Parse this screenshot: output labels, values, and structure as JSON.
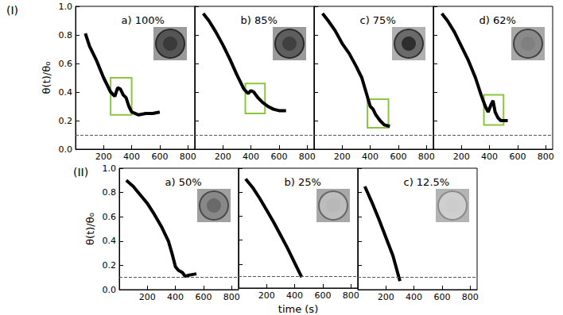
{
  "chart_data": [
    {
      "type": "line",
      "title": "a) 100%",
      "annotations": [
        "(I)"
      ],
      "ylabel": "θ(t)/θ₀",
      "x": [
        70,
        100,
        150,
        200,
        250,
        280,
        300,
        320,
        340,
        360,
        380,
        400,
        450,
        500,
        550,
        600
      ],
      "values": [
        0.81,
        0.72,
        0.62,
        0.5,
        0.4,
        0.37,
        0.43,
        0.42,
        0.38,
        0.36,
        0.3,
        0.26,
        0.24,
        0.25,
        0.25,
        0.26
      ],
      "color": "#000000",
      "line_style": "solid",
      "xlim": [
        0,
        850
      ],
      "xticks": [
        200,
        400,
        600,
        800
      ],
      "ylim": [
        0,
        1.0
      ],
      "yticks": [
        {
          "value": 0,
          "label": "0.0"
        },
        {
          "value": 0.2,
          "label": "0.2"
        },
        {
          "value": 0.4,
          "label": "0.4"
        },
        {
          "value": 0.6,
          "label": "0.6"
        },
        {
          "value": 0.8,
          "label": "0.8"
        },
        {
          "value": 1.0,
          "label": "1.0"
        }
      ],
      "reference_line": 0.1,
      "highlight_box": {
        "xlim": [
          250,
          400
        ],
        "ylim": [
          0.24,
          0.5
        ]
      },
      "grid": false
    },
    {
      "type": "line",
      "title": "b) 85%",
      "x": [
        60,
        100,
        150,
        200,
        250,
        300,
        350,
        380,
        400,
        420,
        450,
        480,
        520,
        560,
        600,
        650
      ],
      "values": [
        0.95,
        0.9,
        0.82,
        0.73,
        0.63,
        0.52,
        0.42,
        0.39,
        0.41,
        0.4,
        0.36,
        0.33,
        0.3,
        0.28,
        0.27,
        0.27
      ],
      "color": "#000000",
      "line_style": "solid",
      "xlim": [
        0,
        850
      ],
      "xticks": [
        200,
        400,
        600,
        800
      ],
      "ylim": [
        0,
        1.0
      ],
      "yticks": [
        0,
        0.2,
        0.4,
        0.6,
        0.8,
        1.0
      ],
      "tick_labels": "x",
      "reference_line": 0.1,
      "highlight_box": {
        "xlim": [
          360,
          500
        ],
        "ylim": [
          0.25,
          0.46
        ]
      },
      "grid": false
    },
    {
      "type": "line",
      "title": "c) 75%",
      "x": [
        60,
        100,
        150,
        200,
        250,
        300,
        340,
        370,
        400,
        420,
        440,
        470,
        500,
        540
      ],
      "values": [
        0.95,
        0.9,
        0.83,
        0.74,
        0.67,
        0.58,
        0.5,
        0.4,
        0.3,
        0.28,
        0.24,
        0.2,
        0.17,
        0.16
      ],
      "color": "#000000",
      "line_style": "solid",
      "xlim": [
        0,
        850
      ],
      "xticks": [
        200,
        400,
        600,
        800
      ],
      "ylim": [
        0,
        1.0
      ],
      "yticks": [
        0,
        0.2,
        0.4,
        0.6,
        0.8,
        1.0
      ],
      "tick_labels": "x",
      "reference_line": 0.1,
      "highlight_box": {
        "xlim": [
          380,
          530
        ],
        "ylim": [
          0.15,
          0.35
        ]
      },
      "grid": false
    },
    {
      "type": "line",
      "title": "d) 62%",
      "x": [
        60,
        100,
        150,
        200,
        250,
        300,
        340,
        370,
        390,
        410,
        425,
        440,
        460,
        480,
        530
      ],
      "values": [
        0.95,
        0.9,
        0.82,
        0.72,
        0.62,
        0.5,
        0.38,
        0.3,
        0.26,
        0.31,
        0.34,
        0.26,
        0.22,
        0.2,
        0.2
      ],
      "color": "#000000",
      "line_style": "solid",
      "xlim": [
        0,
        850
      ],
      "xticks": [
        200,
        400,
        600,
        800
      ],
      "ylim": [
        0,
        1.0
      ],
      "yticks": [
        0,
        0.2,
        0.4,
        0.6,
        0.8,
        1.0
      ],
      "tick_labels": "x",
      "reference_line": 0.1,
      "highlight_box": {
        "xlim": [
          360,
          500
        ],
        "ylim": [
          0.17,
          0.38
        ]
      },
      "grid": false
    },
    {
      "type": "line",
      "title": "a) 50%",
      "annotations": [
        "(II)"
      ],
      "ylabel": "θ(t)/θ₀",
      "x": [
        50,
        100,
        150,
        200,
        250,
        300,
        350,
        380,
        400,
        420,
        450,
        470,
        500,
        550
      ],
      "values": [
        0.9,
        0.85,
        0.78,
        0.71,
        0.62,
        0.52,
        0.4,
        0.28,
        0.19,
        0.16,
        0.14,
        0.11,
        0.12,
        0.13
      ],
      "color": "#000000",
      "line_style": "solid",
      "xlim": [
        0,
        850
      ],
      "xticks": [
        200,
        400,
        600,
        800
      ],
      "ylim": [
        0,
        1.0
      ],
      "yticks": [
        {
          "value": 0,
          "label": "0.0"
        },
        {
          "value": 0.2,
          "label": "0.2"
        },
        {
          "value": 0.4,
          "label": "0.4"
        },
        {
          "value": 0.6,
          "label": "0.6"
        },
        {
          "value": 0.8,
          "label": "0.8"
        },
        {
          "value": 1.0,
          "label": "1.0"
        }
      ],
      "reference_line": 0.1,
      "grid": false
    },
    {
      "type": "line",
      "title": "b) 25%",
      "xlabel": "time (s)",
      "x": [
        50,
        100,
        150,
        200,
        250,
        300,
        350,
        400,
        450
      ],
      "values": [
        0.91,
        0.84,
        0.75,
        0.65,
        0.55,
        0.44,
        0.33,
        0.21,
        0.09
      ],
      "color": "#000000",
      "line_style": "solid",
      "xlim": [
        0,
        850
      ],
      "xticks": [
        200,
        400,
        600,
        800
      ],
      "ylim": [
        0,
        1.0
      ],
      "yticks": [
        0,
        0.2,
        0.4,
        0.6,
        0.8,
        1.0
      ],
      "tick_labels": "x",
      "reference_line": 0.1,
      "grid": false
    },
    {
      "type": "line",
      "title": "c) 12.5%",
      "x": [
        50,
        100,
        150,
        200,
        250,
        300
      ],
      "values": [
        0.85,
        0.72,
        0.58,
        0.43,
        0.28,
        0.07
      ],
      "color": "#000000",
      "line_style": "solid",
      "xlim": [
        0,
        850
      ],
      "xticks": [
        200,
        400,
        600,
        800
      ],
      "ylim": [
        0,
        1.0
      ],
      "yticks": [
        0,
        0.2,
        0.4,
        0.6,
        0.8,
        1.0
      ],
      "tick_labels": "x",
      "reference_line": 0.1,
      "grid": false
    }
  ]
}
